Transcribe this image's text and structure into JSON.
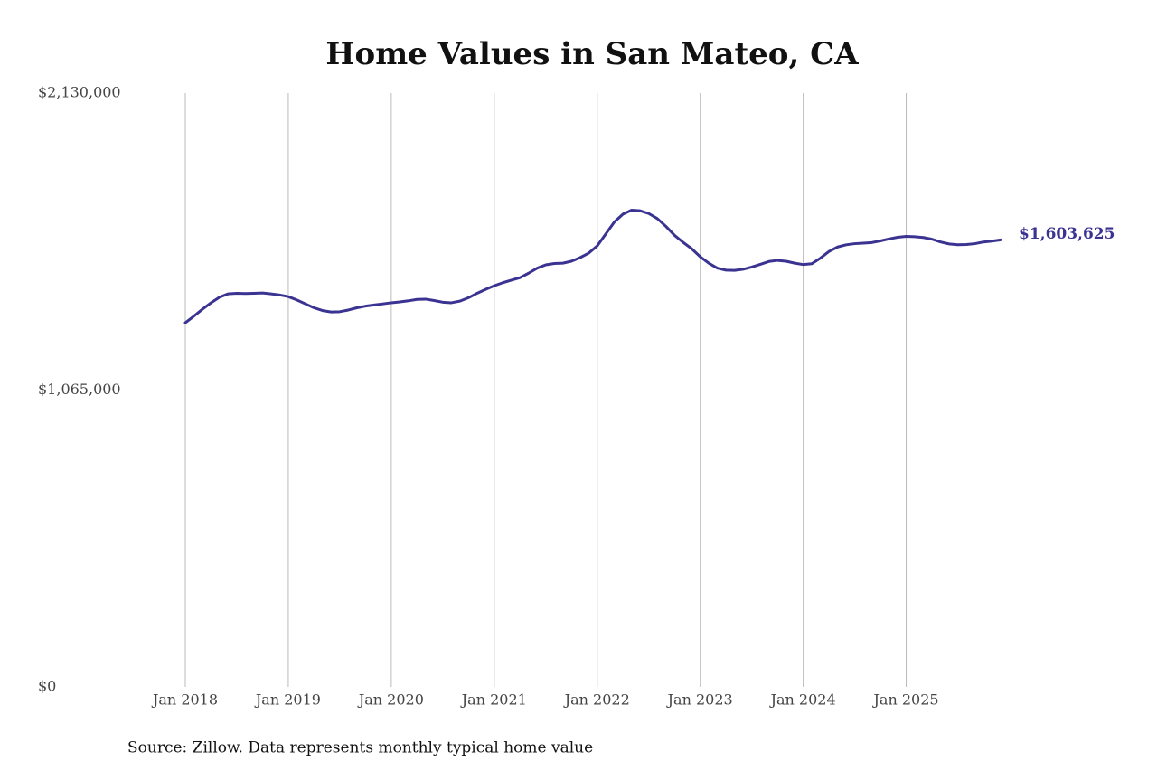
{
  "chart_data": {
    "type": "line",
    "title": "Home Values in San Mateo, CA",
    "source": "Source: Zillow. Data represents monthly typical home value",
    "x": [
      "2018-01",
      "2018-02",
      "2018-03",
      "2018-04",
      "2018-05",
      "2018-06",
      "2018-07",
      "2018-08",
      "2018-09",
      "2018-10",
      "2018-11",
      "2018-12",
      "2019-01",
      "2019-02",
      "2019-03",
      "2019-04",
      "2019-05",
      "2019-06",
      "2019-07",
      "2019-08",
      "2019-09",
      "2019-10",
      "2019-11",
      "2019-12",
      "2020-01",
      "2020-02",
      "2020-03",
      "2020-04",
      "2020-05",
      "2020-06",
      "2020-07",
      "2020-08",
      "2020-09",
      "2020-10",
      "2020-11",
      "2020-12",
      "2021-01",
      "2021-02",
      "2021-03",
      "2021-04",
      "2021-05",
      "2021-06",
      "2021-07",
      "2021-08",
      "2021-09",
      "2021-10",
      "2021-11",
      "2021-12",
      "2022-01",
      "2022-02",
      "2022-03",
      "2022-04",
      "2022-05",
      "2022-06",
      "2022-07",
      "2022-08",
      "2022-09",
      "2022-10",
      "2022-11",
      "2022-12",
      "2023-01",
      "2023-02",
      "2023-03",
      "2023-04",
      "2023-05",
      "2023-06",
      "2023-07",
      "2023-08",
      "2023-09",
      "2023-10",
      "2023-11",
      "2023-12",
      "2024-01",
      "2024-02",
      "2024-03",
      "2024-04",
      "2024-05",
      "2024-06",
      "2024-07",
      "2024-08",
      "2024-09",
      "2024-10",
      "2024-11",
      "2024-12",
      "2025-01",
      "2025-02",
      "2025-03",
      "2025-04",
      "2025-05",
      "2025-06",
      "2025-07",
      "2025-08",
      "2025-09",
      "2025-10",
      "2025-11",
      "2025-12"
    ],
    "series": [
      {
        "name": "Typical home value",
        "color": "#3a3391",
        "values": [
          1306500,
          1330000,
          1355000,
          1378000,
          1398000,
          1410000,
          1412000,
          1411000,
          1412000,
          1413000,
          1410000,
          1406000,
          1400000,
          1388000,
          1374000,
          1360000,
          1350000,
          1345000,
          1346000,
          1352000,
          1360000,
          1366000,
          1370000,
          1374000,
          1378000,
          1381000,
          1385000,
          1390000,
          1391000,
          1386000,
          1380000,
          1378000,
          1384000,
          1396000,
          1412000,
          1426000,
          1439000,
          1450000,
          1459000,
          1468000,
          1484000,
          1502000,
          1514000,
          1519000,
          1520000,
          1527000,
          1540000,
          1556000,
          1582000,
          1625000,
          1668000,
          1696000,
          1710000,
          1708000,
          1698000,
          1680000,
          1652000,
          1620000,
          1595000,
          1572000,
          1543000,
          1520000,
          1502000,
          1495000,
          1494000,
          1498000,
          1506000,
          1516000,
          1526000,
          1530000,
          1527000,
          1520000,
          1515000,
          1518000,
          1538000,
          1562000,
          1578000,
          1586000,
          1590000,
          1592000,
          1594000,
          1600000,
          1607000,
          1613000,
          1616000,
          1615000,
          1612000,
          1606000,
          1596000,
          1589000,
          1586000,
          1587000,
          1590000,
          1596000,
          1599000,
          1603625
        ]
      }
    ],
    "annotations": [
      {
        "x": "2025-12",
        "value": 1603625,
        "label": "$1,603,625"
      }
    ],
    "xlim": [
      "2018-01",
      "2025-12"
    ],
    "xticks": [
      {
        "value": "2018-01",
        "label": "Jan 2018"
      },
      {
        "value": "2019-01",
        "label": "Jan 2019"
      },
      {
        "value": "2020-01",
        "label": "Jan 2020"
      },
      {
        "value": "2021-01",
        "label": "Jan 2021"
      },
      {
        "value": "2022-01",
        "label": "Jan 2022"
      },
      {
        "value": "2023-01",
        "label": "Jan 2023"
      },
      {
        "value": "2024-01",
        "label": "Jan 2024"
      },
      {
        "value": "2025-01",
        "label": "Jan 2025"
      }
    ],
    "ylim": [
      0,
      2130000
    ],
    "yticks": [
      {
        "value": 0,
        "label": "$0"
      },
      {
        "value": 1065000,
        "label": "$1,065,000"
      },
      {
        "value": 2130000,
        "label": "$2,130,000"
      }
    ],
    "grid": "x"
  }
}
